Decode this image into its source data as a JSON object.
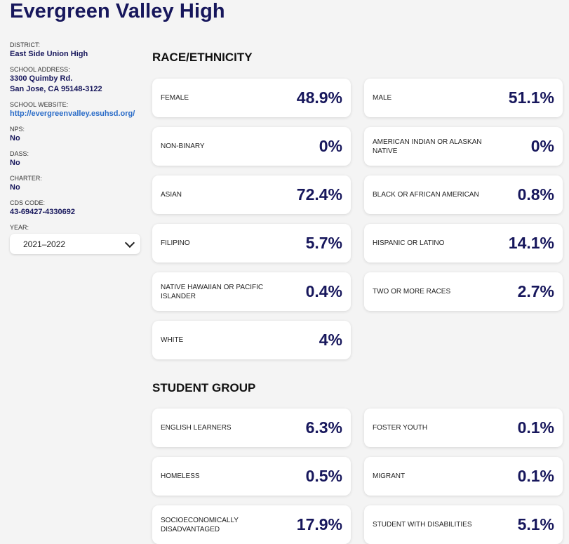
{
  "school": {
    "name": "Evergreen Valley High"
  },
  "sidebar": {
    "district_label": "DISTRICT:",
    "district_value": "East Side Union High",
    "address_label": "SCHOOL ADDRESS:",
    "address_line1": "3300 Quimby Rd.",
    "address_line2": "San Jose, CA 95148-3122",
    "website_label": "SCHOOL WEBSITE:",
    "website_value": "http://evergreenvalley.esuhsd.org/",
    "nps_label": "NPS:",
    "nps_value": "No",
    "dass_label": "DASS:",
    "dass_value": "No",
    "charter_label": "CHARTER:",
    "charter_value": "No",
    "cds_label": "CDS CODE:",
    "cds_value": "43-69427-4330692",
    "year_label": "YEAR:",
    "year_value": "2021–2022"
  },
  "race": {
    "title": "RACE/ETHNICITY",
    "cards": [
      {
        "label": "FEMALE",
        "value": "48.9%"
      },
      {
        "label": "MALE",
        "value": "51.1%"
      },
      {
        "label": "NON-BINARY",
        "value": "0%"
      },
      {
        "label": "AMERICAN INDIAN OR ALASKAN NATIVE",
        "value": "0%"
      },
      {
        "label": "ASIAN",
        "value": "72.4%"
      },
      {
        "label": "BLACK OR AFRICAN AMERICAN",
        "value": "0.8%"
      },
      {
        "label": "FILIPINO",
        "value": "5.7%"
      },
      {
        "label": "HISPANIC OR LATINO",
        "value": "14.1%"
      },
      {
        "label": "NATIVE HAWAIIAN OR PACIFIC ISLANDER",
        "value": "0.4%"
      },
      {
        "label": "TWO OR MORE RACES",
        "value": "2.7%"
      },
      {
        "label": "WHITE",
        "value": "4%"
      }
    ]
  },
  "group": {
    "title": "STUDENT GROUP",
    "cards": [
      {
        "label": "ENGLISH LEARNERS",
        "value": "6.3%"
      },
      {
        "label": "FOSTER YOUTH",
        "value": "0.1%"
      },
      {
        "label": "HOMELESS",
        "value": "0.5%"
      },
      {
        "label": "MIGRANT",
        "value": "0.1%"
      },
      {
        "label": "SOCIOECONOMICALLY DISADVANTAGED",
        "value": "17.9%"
      },
      {
        "label": "STUDENT WITH DISABILITIES",
        "value": "5.1%"
      }
    ]
  }
}
